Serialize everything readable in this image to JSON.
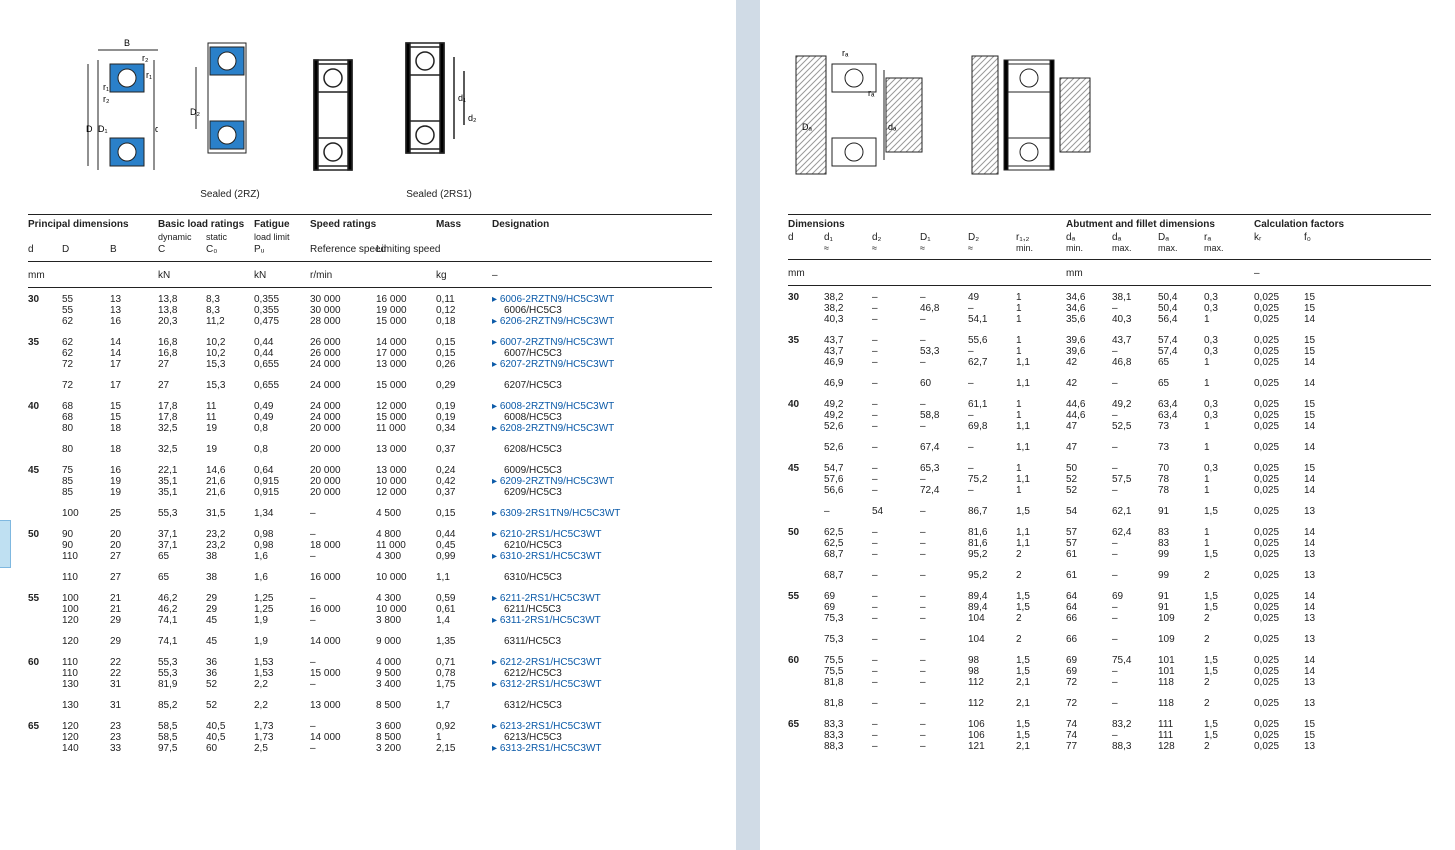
{
  "captions": {
    "sealed2rz": "Sealed (2RZ)",
    "sealed2rs1": "Sealed (2RS1)"
  },
  "leftTable": {
    "groupHeads": [
      {
        "label": "Principal dimensions",
        "span": 3
      },
      {
        "label": "Basic load ratings",
        "span": 2
      },
      {
        "label": "Fatigue",
        "span": 1
      },
      {
        "label": "Speed ratings",
        "span": 2
      },
      {
        "label": "Mass",
        "span": 1
      },
      {
        "label": "Designation",
        "span": 1
      }
    ],
    "subHeads": [
      "d",
      "D",
      "B",
      "C",
      "C₀",
      "Pᵤ",
      "Reference speed",
      "Limiting speed",
      "",
      ""
    ],
    "subHeads2": [
      "",
      "",
      "",
      "dynamic",
      "static",
      "load limit",
      "",
      "",
      "",
      ""
    ],
    "units": [
      "mm",
      "",
      "",
      "kN",
      "",
      "kN",
      "r/min",
      "",
      "kg",
      "–"
    ],
    "cols": [
      34,
      48,
      48,
      48,
      48,
      56,
      66,
      60,
      56,
      220
    ],
    "groups": [
      {
        "d": "30",
        "rows": [
          [
            "",
            "55",
            "13",
            "13,8",
            "8,3",
            "0,355",
            "30 000",
            "16 000",
            "0,11",
            "6006-2RZTN9/HC5C3WT",
            true
          ],
          [
            "",
            "55",
            "13",
            "13,8",
            "8,3",
            "0,355",
            "30 000",
            "19 000",
            "0,12",
            "6006/HC5C3",
            false
          ],
          [
            "",
            "62",
            "16",
            "20,3",
            "11,2",
            "0,475",
            "28 000",
            "15 000",
            "0,18",
            "6206-2RZTN9/HC5C3WT",
            true
          ]
        ]
      },
      {
        "d": "35",
        "rows": [
          [
            "",
            "62",
            "14",
            "16,8",
            "10,2",
            "0,44",
            "26 000",
            "14 000",
            "0,15",
            "6007-2RZTN9/HC5C3WT",
            true
          ],
          [
            "",
            "62",
            "14",
            "16,8",
            "10,2",
            "0,44",
            "26 000",
            "17 000",
            "0,15",
            "6007/HC5C3",
            false
          ],
          [
            "",
            "72",
            "17",
            "27",
            "15,3",
            "0,655",
            "24 000",
            "13 000",
            "0,26",
            "6207-2RZTN9/HC5C3WT",
            true
          ]
        ]
      },
      {
        "d": "",
        "rows": [
          [
            "",
            "72",
            "17",
            "27",
            "15,3",
            "0,655",
            "24 000",
            "15 000",
            "0,29",
            "6207/HC5C3",
            false
          ]
        ]
      },
      {
        "d": "40",
        "rows": [
          [
            "",
            "68",
            "15",
            "17,8",
            "11",
            "0,49",
            "24 000",
            "12 000",
            "0,19",
            "6008-2RZTN9/HC5C3WT",
            true
          ],
          [
            "",
            "68",
            "15",
            "17,8",
            "11",
            "0,49",
            "24 000",
            "15 000",
            "0,19",
            "6008/HC5C3",
            false
          ],
          [
            "",
            "80",
            "18",
            "32,5",
            "19",
            "0,8",
            "20 000",
            "11 000",
            "0,34",
            "6208-2RZTN9/HC5C3WT",
            true
          ]
        ]
      },
      {
        "d": "",
        "rows": [
          [
            "",
            "80",
            "18",
            "32,5",
            "19",
            "0,8",
            "20 000",
            "13 000",
            "0,37",
            "6208/HC5C3",
            false
          ]
        ]
      },
      {
        "d": "45",
        "rows": [
          [
            "",
            "75",
            "16",
            "22,1",
            "14,6",
            "0,64",
            "20 000",
            "13 000",
            "0,24",
            "6009/HC5C3",
            false
          ],
          [
            "",
            "85",
            "19",
            "35,1",
            "21,6",
            "0,915",
            "20 000",
            "10 000",
            "0,42",
            "6209-2RZTN9/HC5C3WT",
            true
          ],
          [
            "",
            "85",
            "19",
            "35,1",
            "21,6",
            "0,915",
            "20 000",
            "12 000",
            "0,37",
            "6209/HC5C3",
            false
          ]
        ]
      },
      {
        "d": "",
        "rows": [
          [
            "",
            "100",
            "25",
            "55,3",
            "31,5",
            "1,34",
            "–",
            "4 500",
            "0,15",
            "6309-2RS1TN9/HC5C3WT",
            true
          ]
        ]
      },
      {
        "d": "50",
        "rows": [
          [
            "",
            "90",
            "20",
            "37,1",
            "23,2",
            "0,98",
            "–",
            "4 800",
            "0,44",
            "6210-2RS1/HC5C3WT",
            true
          ],
          [
            "",
            "90",
            "20",
            "37,1",
            "23,2",
            "0,98",
            "18 000",
            "11 000",
            "0,45",
            "6210/HC5C3",
            false
          ],
          [
            "",
            "110",
            "27",
            "65",
            "38",
            "1,6",
            "–",
            "4 300",
            "0,99",
            "6310-2RS1/HC5C3WT",
            true
          ]
        ]
      },
      {
        "d": "",
        "rows": [
          [
            "",
            "110",
            "27",
            "65",
            "38",
            "1,6",
            "16 000",
            "10 000",
            "1,1",
            "6310/HC5C3",
            false
          ]
        ]
      },
      {
        "d": "55",
        "rows": [
          [
            "",
            "100",
            "21",
            "46,2",
            "29",
            "1,25",
            "–",
            "4 300",
            "0,59",
            "6211-2RS1/HC5C3WT",
            true
          ],
          [
            "",
            "100",
            "21",
            "46,2",
            "29",
            "1,25",
            "16 000",
            "10 000",
            "0,61",
            "6211/HC5C3",
            false
          ],
          [
            "",
            "120",
            "29",
            "74,1",
            "45",
            "1,9",
            "–",
            "3 800",
            "1,4",
            "6311-2RS1/HC5C3WT",
            true
          ]
        ]
      },
      {
        "d": "",
        "rows": [
          [
            "",
            "120",
            "29",
            "74,1",
            "45",
            "1,9",
            "14 000",
            "9 000",
            "1,35",
            "6311/HC5C3",
            false
          ]
        ]
      },
      {
        "d": "60",
        "rows": [
          [
            "",
            "110",
            "22",
            "55,3",
            "36",
            "1,53",
            "–",
            "4 000",
            "0,71",
            "6212-2RS1/HC5C3WT",
            true
          ],
          [
            "",
            "110",
            "22",
            "55,3",
            "36",
            "1,53",
            "15 000",
            "9 500",
            "0,78",
            "6212/HC5C3",
            false
          ],
          [
            "",
            "130",
            "31",
            "81,9",
            "52",
            "2,2",
            "–",
            "3 400",
            "1,75",
            "6312-2RS1/HC5C3WT",
            true
          ]
        ]
      },
      {
        "d": "",
        "rows": [
          [
            "",
            "130",
            "31",
            "85,2",
            "52",
            "2,2",
            "13 000",
            "8 500",
            "1,7",
            "6312/HC5C3",
            false
          ]
        ]
      },
      {
        "d": "65",
        "rows": [
          [
            "",
            "120",
            "23",
            "58,5",
            "40,5",
            "1,73",
            "–",
            "3 600",
            "0,92",
            "6213-2RS1/HC5C3WT",
            true
          ],
          [
            "",
            "120",
            "23",
            "58,5",
            "40,5",
            "1,73",
            "14 000",
            "8 500",
            "1",
            "6213/HC5C3",
            false
          ],
          [
            "",
            "140",
            "33",
            "97,5",
            "60",
            "2,5",
            "–",
            "3 200",
            "2,15",
            "6313-2RS1/HC5C3WT",
            true
          ]
        ]
      }
    ]
  },
  "rightTable": {
    "groupHeads": [
      {
        "label": "Dimensions",
        "span": 6
      },
      {
        "label": "Abutment and fillet dimensions",
        "span": 4
      },
      {
        "label": "Calculation factors",
        "span": 2
      }
    ],
    "subHeads": [
      "d",
      "d₁\n≈",
      "d₂\n≈",
      "D₁\n≈",
      "D₂\n≈",
      "r₁,₂\nmin.",
      "dₐ\nmin.",
      "dₐ\nmax.",
      "Dₐ\nmax.",
      "rₐ\nmax.",
      "kᵣ",
      "f₀"
    ],
    "units": [
      "mm",
      "",
      "",
      "",
      "",
      "",
      "mm",
      "",
      "",
      "",
      "–",
      ""
    ],
    "cols": [
      36,
      48,
      48,
      48,
      48,
      50,
      46,
      46,
      46,
      50,
      50,
      34
    ],
    "groups": [
      {
        "d": "30",
        "rows": [
          [
            "",
            "38,2",
            "–",
            "–",
            "49",
            "1",
            "34,6",
            "38,1",
            "50,4",
            "0,3",
            "0,025",
            "15"
          ],
          [
            "",
            "38,2",
            "–",
            "46,8",
            "–",
            "1",
            "34,6",
            "–",
            "50,4",
            "0,3",
            "0,025",
            "15"
          ],
          [
            "",
            "40,3",
            "–",
            "–",
            "54,1",
            "1",
            "35,6",
            "40,3",
            "56,4",
            "1",
            "0,025",
            "14"
          ]
        ]
      },
      {
        "d": "35",
        "rows": [
          [
            "",
            "43,7",
            "–",
            "–",
            "55,6",
            "1",
            "39,6",
            "43,7",
            "57,4",
            "0,3",
            "0,025",
            "15"
          ],
          [
            "",
            "43,7",
            "–",
            "53,3",
            "–",
            "1",
            "39,6",
            "–",
            "57,4",
            "0,3",
            "0,025",
            "15"
          ],
          [
            "",
            "46,9",
            "–",
            "–",
            "62,7",
            "1,1",
            "42",
            "46,8",
            "65",
            "1",
            "0,025",
            "14"
          ]
        ]
      },
      {
        "d": "",
        "rows": [
          [
            "",
            "46,9",
            "–",
            "60",
            "–",
            "1,1",
            "42",
            "–",
            "65",
            "1",
            "0,025",
            "14"
          ]
        ]
      },
      {
        "d": "40",
        "rows": [
          [
            "",
            "49,2",
            "–",
            "–",
            "61,1",
            "1",
            "44,6",
            "49,2",
            "63,4",
            "0,3",
            "0,025",
            "15"
          ],
          [
            "",
            "49,2",
            "–",
            "58,8",
            "–",
            "1",
            "44,6",
            "–",
            "63,4",
            "0,3",
            "0,025",
            "15"
          ],
          [
            "",
            "52,6",
            "–",
            "–",
            "69,8",
            "1,1",
            "47",
            "52,5",
            "73",
            "1",
            "0,025",
            "14"
          ]
        ]
      },
      {
        "d": "",
        "rows": [
          [
            "",
            "52,6",
            "–",
            "67,4",
            "–",
            "1,1",
            "47",
            "–",
            "73",
            "1",
            "0,025",
            "14"
          ]
        ]
      },
      {
        "d": "45",
        "rows": [
          [
            "",
            "54,7",
            "–",
            "65,3",
            "–",
            "1",
            "50",
            "–",
            "70",
            "0,3",
            "0,025",
            "15"
          ],
          [
            "",
            "57,6",
            "–",
            "–",
            "75,2",
            "1,1",
            "52",
            "57,5",
            "78",
            "1",
            "0,025",
            "14"
          ],
          [
            "",
            "56,6",
            "–",
            "72,4",
            "–",
            "1",
            "52",
            "–",
            "78",
            "1",
            "0,025",
            "14"
          ]
        ]
      },
      {
        "d": "",
        "rows": [
          [
            "",
            "–",
            "54",
            "–",
            "86,7",
            "1,5",
            "54",
            "62,1",
            "91",
            "1,5",
            "0,025",
            "13"
          ]
        ]
      },
      {
        "d": "50",
        "rows": [
          [
            "",
            "62,5",
            "–",
            "–",
            "81,6",
            "1,1",
            "57",
            "62,4",
            "83",
            "1",
            "0,025",
            "14"
          ],
          [
            "",
            "62,5",
            "–",
            "–",
            "81,6",
            "1,1",
            "57",
            "–",
            "83",
            "1",
            "0,025",
            "14"
          ],
          [
            "",
            "68,7",
            "–",
            "–",
            "95,2",
            "2",
            "61",
            "–",
            "99",
            "1,5",
            "0,025",
            "13"
          ]
        ]
      },
      {
        "d": "",
        "rows": [
          [
            "",
            "68,7",
            "–",
            "–",
            "95,2",
            "2",
            "61",
            "–",
            "99",
            "2",
            "0,025",
            "13"
          ]
        ]
      },
      {
        "d": "55",
        "rows": [
          [
            "",
            "69",
            "–",
            "–",
            "89,4",
            "1,5",
            "64",
            "69",
            "91",
            "1,5",
            "0,025",
            "14"
          ],
          [
            "",
            "69",
            "–",
            "–",
            "89,4",
            "1,5",
            "64",
            "–",
            "91",
            "1,5",
            "0,025",
            "14"
          ],
          [
            "",
            "75,3",
            "–",
            "–",
            "104",
            "2",
            "66",
            "–",
            "109",
            "2",
            "0,025",
            "13"
          ]
        ]
      },
      {
        "d": "",
        "rows": [
          [
            "",
            "75,3",
            "–",
            "–",
            "104",
            "2",
            "66",
            "–",
            "109",
            "2",
            "0,025",
            "13"
          ]
        ]
      },
      {
        "d": "60",
        "rows": [
          [
            "",
            "75,5",
            "–",
            "–",
            "98",
            "1,5",
            "69",
            "75,4",
            "101",
            "1,5",
            "0,025",
            "14"
          ],
          [
            "",
            "75,5",
            "–",
            "–",
            "98",
            "1,5",
            "69",
            "–",
            "101",
            "1,5",
            "0,025",
            "14"
          ],
          [
            "",
            "81,8",
            "–",
            "–",
            "112",
            "2,1",
            "72",
            "–",
            "118",
            "2",
            "0,025",
            "13"
          ]
        ]
      },
      {
        "d": "",
        "rows": [
          [
            "",
            "81,8",
            "–",
            "–",
            "112",
            "2,1",
            "72",
            "–",
            "118",
            "2",
            "0,025",
            "13"
          ]
        ]
      },
      {
        "d": "65",
        "rows": [
          [
            "",
            "83,3",
            "–",
            "–",
            "106",
            "1,5",
            "74",
            "83,2",
            "111",
            "1,5",
            "0,025",
            "15"
          ],
          [
            "",
            "83,3",
            "–",
            "–",
            "106",
            "1,5",
            "74",
            "–",
            "111",
            "1,5",
            "0,025",
            "15"
          ],
          [
            "",
            "88,3",
            "–",
            "–",
            "121",
            "2,1",
            "77",
            "88,3",
            "128",
            "2",
            "0,025",
            "13"
          ]
        ]
      }
    ]
  }
}
